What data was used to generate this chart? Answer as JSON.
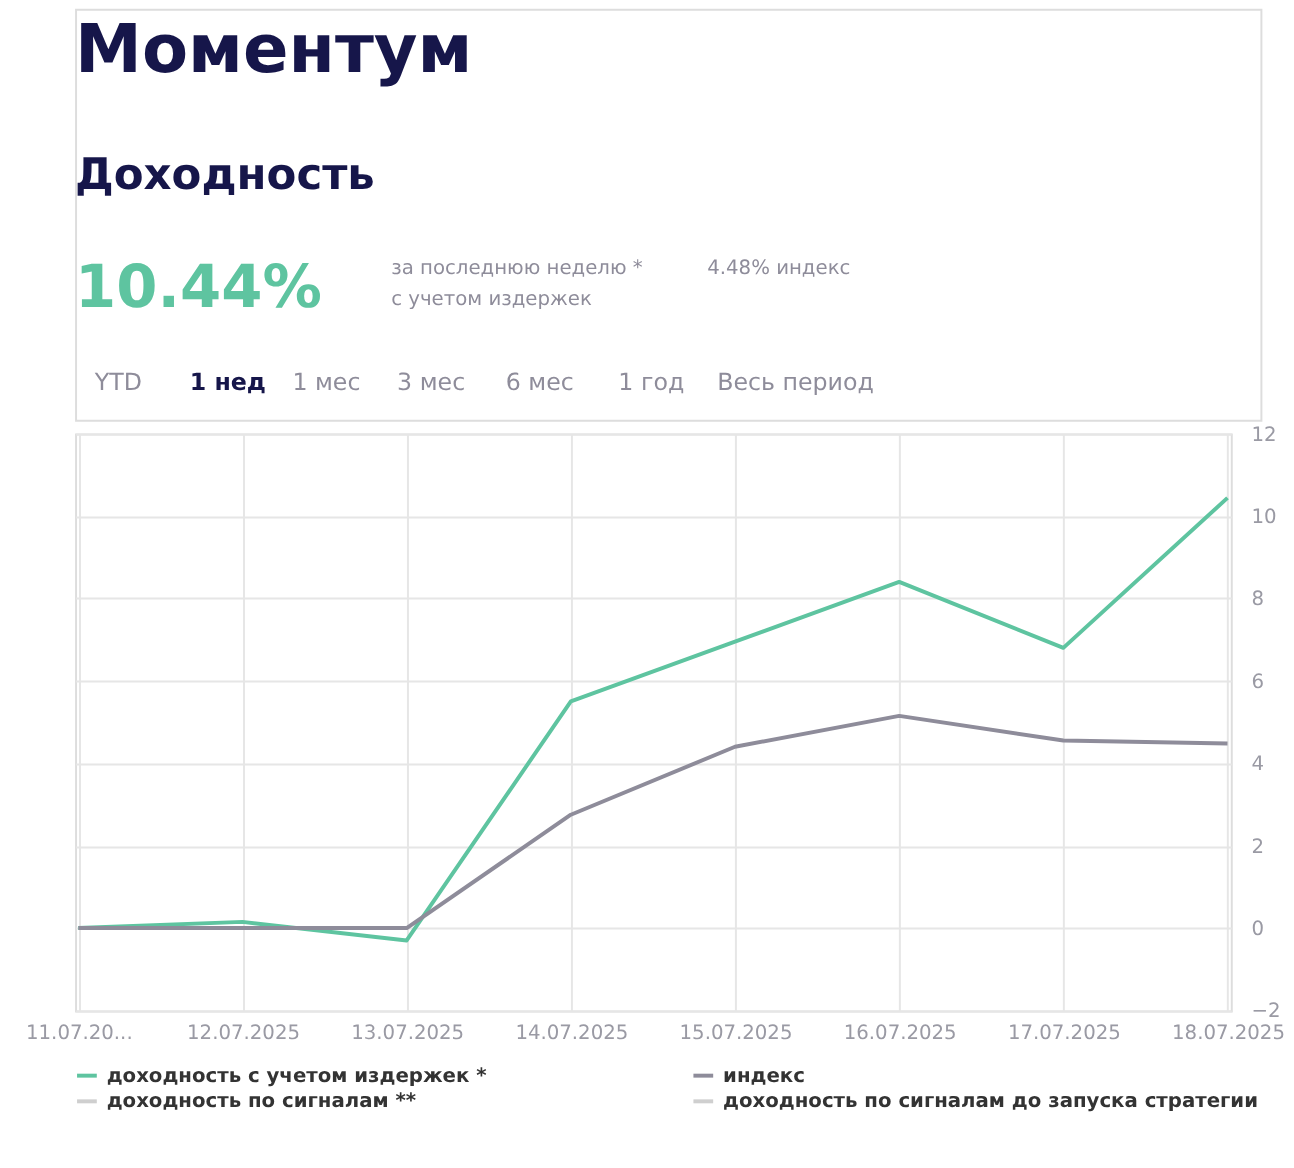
{
  "chart_data": {
    "type": "line",
    "title": "Моментум",
    "subtitle": "Доходность",
    "annotations": [
      "10.44%",
      "за последнюю неделю *",
      "с учетом издержек",
      "4.48% индекс",
      "YTD",
      "1 нед",
      "1 мес",
      "3 мес",
      "6 мес",
      "1 год",
      "Весь период"
    ],
    "categories": [
      "11.07.20...",
      "12.07.2025",
      "13.07.2025",
      "14.07.2025",
      "15.07.2025",
      "16.07.2025",
      "17.07.2025",
      "18.07.2025"
    ],
    "series": [
      {
        "name": "доходность с учетом издержек *",
        "color": "#5ec4a0",
        "values": [
          0,
          0.15,
          -0.3,
          5.5,
          6.95,
          8.4,
          6.8,
          10.44
        ]
      },
      {
        "name": "индекс",
        "color": "#8e8c9a",
        "values": [
          0,
          0,
          0,
          2.75,
          4.4,
          5.15,
          4.55,
          4.48
        ]
      },
      {
        "name": "доходность по сигналам **",
        "color": "#cfcfcf",
        "values": [
          null,
          null,
          null,
          null,
          null,
          null,
          null,
          null
        ]
      },
      {
        "name": "доходность по сигналам до запуска стратегии",
        "color": "#cfcfcf",
        "values": [
          null,
          null,
          null,
          null,
          null,
          null,
          null,
          null
        ]
      }
    ],
    "ylim": [
      -2,
      12
    ],
    "yticks": [
      -2,
      0,
      2,
      4,
      6,
      8,
      10,
      12
    ],
    "grid": true,
    "legend": "bottom left",
    "line_style": "solid",
    "marker": "none"
  }
}
